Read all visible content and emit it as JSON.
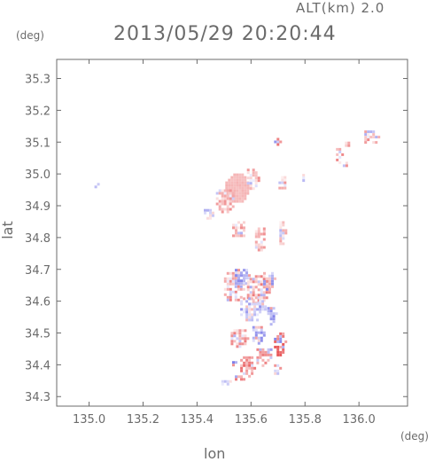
{
  "header": {
    "altitude_label": "ALT(km) 2.0",
    "datetime": "2013/05/29 20:20:44",
    "unit_left": "(deg)",
    "unit_right": "(deg)"
  },
  "chart_data": {
    "type": "heatmap",
    "xlabel": "lon",
    "ylabel": "lat",
    "xlim": [
      134.88,
      136.18
    ],
    "ylim": [
      34.27,
      35.36
    ],
    "x_ticks": [
      135.0,
      135.2,
      135.4,
      135.6,
      135.8,
      136.0
    ],
    "y_ticks": [
      34.3,
      34.4,
      34.5,
      34.6,
      34.7,
      34.8,
      34.9,
      35.0,
      35.1,
      35.2,
      35.3
    ],
    "grid": false,
    "colors": {
      "positive": "#e8585a",
      "positive_light": "#f5b3b3",
      "negative": "#7272e6",
      "negative_light": "#d3d3f5",
      "frame": "#6b6b6b"
    },
    "regions": [
      {
        "lon": 135.545,
        "lat": 34.96,
        "r_lon": 0.05,
        "r_lat": 0.05,
        "value": 0.35
      },
      {
        "lon": 135.5,
        "lat": 34.92,
        "r_lon": 0.04,
        "r_lat": 0.04,
        "value": 0.3
      },
      {
        "lon": 135.6,
        "lat": 34.99,
        "r_lon": 0.025,
        "r_lat": 0.035,
        "value": 0.3
      },
      {
        "lon": 135.71,
        "lat": 34.98,
        "r_lon": 0.018,
        "r_lat": 0.03,
        "value": 0.35
      },
      {
        "lon": 135.79,
        "lat": 34.99,
        "r_lon": 0.008,
        "r_lat": 0.01,
        "value": 0.3
      },
      {
        "lon": 135.695,
        "lat": 35.105,
        "r_lon": 0.008,
        "r_lat": 0.008,
        "value": 0.6
      },
      {
        "lon": 135.02,
        "lat": 34.97,
        "r_lon": 0.01,
        "r_lat": 0.01,
        "value": -0.25
      },
      {
        "lon": 135.44,
        "lat": 34.88,
        "r_lon": 0.025,
        "r_lat": 0.018,
        "value": -0.2
      },
      {
        "lon": 135.92,
        "lat": 35.06,
        "r_lon": 0.015,
        "r_lat": 0.03,
        "value": 0.4
      },
      {
        "lon": 135.95,
        "lat": 35.1,
        "r_lon": 0.012,
        "r_lat": 0.01,
        "value": 0.3
      },
      {
        "lon": 135.95,
        "lat": 35.03,
        "r_lon": 0.008,
        "r_lat": 0.008,
        "value": 0.3
      },
      {
        "lon": 136.04,
        "lat": 35.12,
        "r_lon": 0.03,
        "r_lat": 0.025,
        "value": 0.35
      },
      {
        "lon": 135.55,
        "lat": 34.83,
        "r_lon": 0.03,
        "r_lat": 0.03,
        "value": 0.3
      },
      {
        "lon": 135.63,
        "lat": 34.8,
        "r_lon": 0.025,
        "r_lat": 0.04,
        "value": 0.3
      },
      {
        "lon": 135.71,
        "lat": 34.82,
        "r_lon": 0.015,
        "r_lat": 0.04,
        "value": 0.35
      },
      {
        "lon": 135.53,
        "lat": 34.65,
        "r_lon": 0.04,
        "r_lat": 0.05,
        "value": 0.4
      },
      {
        "lon": 135.56,
        "lat": 34.68,
        "r_lon": 0.03,
        "r_lat": 0.03,
        "value": -0.5
      },
      {
        "lon": 135.62,
        "lat": 34.64,
        "r_lon": 0.045,
        "r_lat": 0.05,
        "value": 0.45
      },
      {
        "lon": 135.66,
        "lat": 34.67,
        "r_lon": 0.025,
        "r_lat": 0.03,
        "value": -0.5
      },
      {
        "lon": 135.6,
        "lat": 34.58,
        "r_lon": 0.05,
        "r_lat": 0.04,
        "value": -0.4
      },
      {
        "lon": 135.67,
        "lat": 34.56,
        "r_lon": 0.02,
        "r_lat": 0.03,
        "value": -0.55
      },
      {
        "lon": 135.55,
        "lat": 34.49,
        "r_lon": 0.035,
        "r_lat": 0.03,
        "value": 0.4
      },
      {
        "lon": 135.62,
        "lat": 34.5,
        "r_lon": 0.025,
        "r_lat": 0.03,
        "value": -0.45
      },
      {
        "lon": 135.7,
        "lat": 34.47,
        "r_lon": 0.025,
        "r_lat": 0.04,
        "value": 0.75
      },
      {
        "lon": 135.64,
        "lat": 34.43,
        "r_lon": 0.03,
        "r_lat": 0.03,
        "value": 0.6
      },
      {
        "lon": 135.66,
        "lat": 34.45,
        "r_lon": 0.01,
        "r_lat": 0.01,
        "value": -0.6
      },
      {
        "lon": 135.58,
        "lat": 34.4,
        "r_lon": 0.03,
        "r_lat": 0.035,
        "value": 0.55
      },
      {
        "lon": 135.53,
        "lat": 34.41,
        "r_lon": 0.01,
        "r_lat": 0.01,
        "value": -0.6
      },
      {
        "lon": 135.55,
        "lat": 34.36,
        "r_lon": 0.02,
        "r_lat": 0.015,
        "value": 0.65
      },
      {
        "lon": 135.5,
        "lat": 34.35,
        "r_lon": 0.02,
        "r_lat": 0.01,
        "value": -0.2
      },
      {
        "lon": 135.69,
        "lat": 34.39,
        "r_lon": 0.015,
        "r_lat": 0.02,
        "value": 0.4
      }
    ]
  }
}
